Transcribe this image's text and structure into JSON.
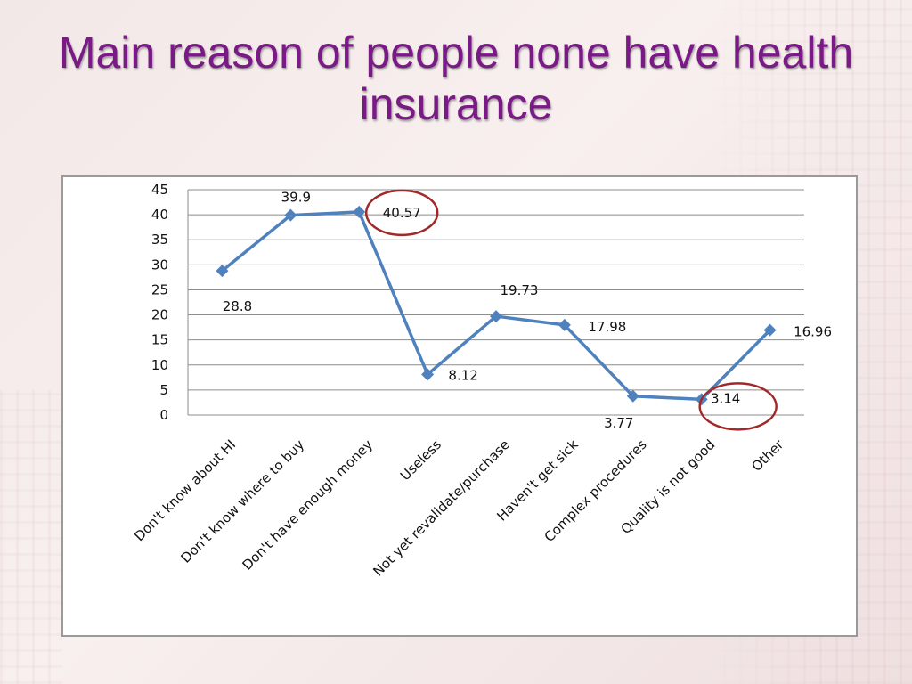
{
  "slide": {
    "title": "Main reason of people none have health insurance"
  },
  "colors": {
    "title": "#7a1a86",
    "line": "#4f81bd",
    "highlight_circle": "#a02a2a",
    "grid": "#8c8c8c"
  },
  "chart_data": {
    "type": "line",
    "title": "",
    "xlabel": "",
    "ylabel": "",
    "ylim": [
      0,
      45
    ],
    "yticks": [
      0,
      5,
      10,
      15,
      20,
      25,
      30,
      35,
      40,
      45
    ],
    "grid": "horizontal",
    "legend": "none",
    "categories": [
      "Don't know  about HI",
      "Don't know where to buy",
      "Don't have enough money",
      "Useless",
      "Not yet revalidate/purchase",
      "Haven't get sick",
      "Complex procedures",
      "Quality  is not good",
      "Other"
    ],
    "series": [
      {
        "values": [
          28.8,
          39.9,
          40.57,
          8.12,
          19.73,
          17.98,
          3.77,
          3.14,
          16.96
        ],
        "labels": [
          "28.8",
          "39.9",
          "40.57",
          "8.12",
          "19.73",
          "17.98",
          "3.77",
          "3.14",
          "16.96"
        ]
      }
    ],
    "highlighted_points": [
      2,
      7
    ]
  }
}
